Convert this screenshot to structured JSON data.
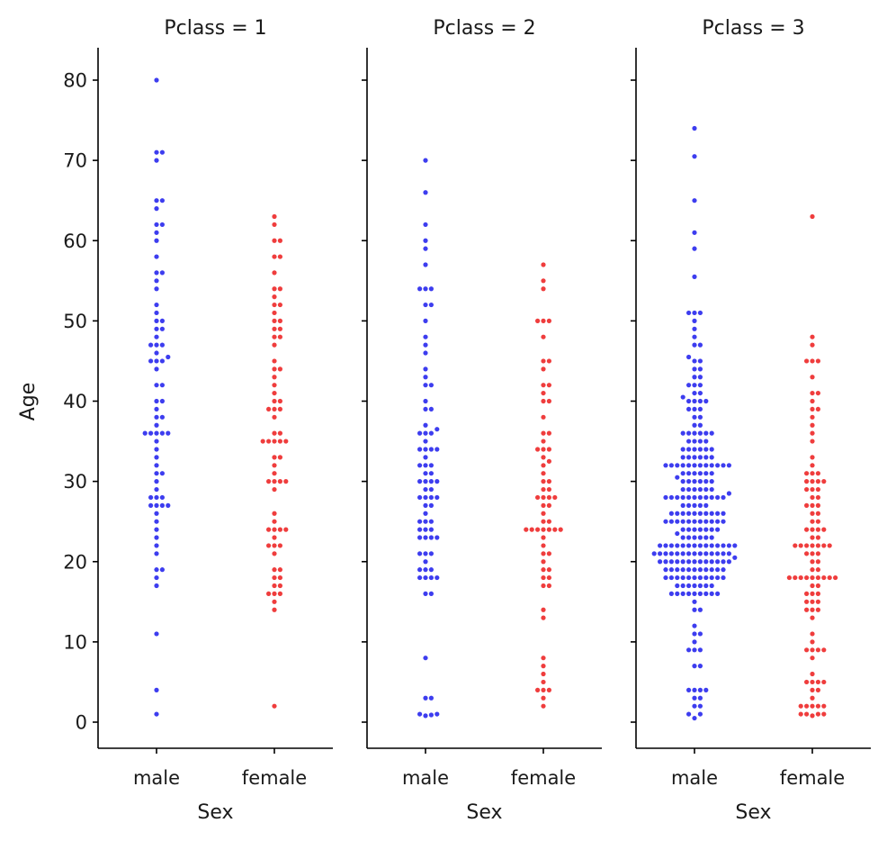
{
  "chart_data": {
    "type": "scatter",
    "kind": "swarm",
    "ylabel": "Age",
    "yticks": [
      0,
      10,
      20,
      30,
      40,
      50,
      60,
      70,
      80
    ],
    "ylim": [
      -3.4,
      84
    ],
    "categories": [
      "male",
      "female"
    ],
    "colors": {
      "male": "#3333ee",
      "female": "#ee3333"
    },
    "panels": [
      {
        "title": "Pclass = 1",
        "xlabel": "Sex",
        "series": [
          {
            "name": "male",
            "values": [
              1,
              4,
              11,
              17,
              18,
              19,
              19,
              21,
              22,
              23,
              24,
              25,
              26,
              27,
              27,
              27,
              27,
              28,
              28,
              28,
              29,
              30,
              31,
              31,
              32,
              33,
              34,
              35,
              36,
              36,
              36,
              36,
              36,
              37,
              38,
              38,
              39,
              40,
              40,
              42,
              42,
              44,
              45,
              45,
              45,
              45.5,
              46,
              47,
              47,
              47,
              48,
              49,
              49,
              50,
              50,
              51,
              52,
              54,
              55,
              56,
              56,
              58,
              60,
              61,
              62,
              62,
              64,
              65,
              65,
              70,
              71,
              71,
              80
            ]
          },
          {
            "name": "female",
            "values": [
              2,
              14,
              15,
              16,
              16,
              16,
              17,
              17,
              18,
              18,
              19,
              19,
              21,
              22,
              22,
              22,
              23,
              24,
              24,
              24,
              24,
              25,
              26,
              29,
              30,
              30,
              30,
              30,
              31,
              32,
              33,
              33,
              35,
              35,
              35,
              35,
              35,
              36,
              36,
              38,
              39,
              39,
              39,
              40,
              40,
              41,
              42,
              43,
              44,
              44,
              45,
              47,
              48,
              48,
              49,
              49,
              50,
              50,
              51,
              52,
              52,
              53,
              54,
              54,
              56,
              58,
              58,
              60,
              60,
              62,
              63
            ]
          }
        ]
      },
      {
        "title": "Pclass = 2",
        "xlabel": "Sex",
        "series": [
          {
            "name": "male",
            "values": [
              0.8,
              0.9,
              1,
              1,
              3,
              3,
              8,
              16,
              16,
              18,
              18,
              18,
              18,
              19,
              19,
              19,
              20,
              21,
              21,
              21,
              23,
              23,
              23,
              23,
              24,
              24,
              24,
              25,
              25,
              25,
              26,
              27,
              27,
              28,
              28,
              28,
              28,
              29,
              29,
              30,
              30,
              30,
              30,
              31,
              31,
              32,
              32,
              32,
              33,
              34,
              34,
              34,
              34,
              35,
              36,
              36,
              36,
              36.5,
              37,
              39,
              39,
              40,
              42,
              42,
              43,
              44,
              46,
              47,
              48,
              50,
              52,
              52,
              54,
              54,
              54,
              57,
              59,
              60,
              62,
              66,
              70
            ]
          },
          {
            "name": "female",
            "values": [
              2,
              3,
              4,
              4,
              4,
              5,
              6,
              7,
              8,
              13,
              14,
              17,
              17,
              18,
              18,
              19,
              19,
              20,
              21,
              21,
              22,
              23,
              24,
              24,
              24,
              24,
              24,
              24,
              24,
              25,
              25,
              26,
              27,
              27,
              28,
              28,
              28,
              28,
              29,
              29,
              30,
              30,
              31,
              32,
              32.5,
              33,
              34,
              34,
              34,
              35,
              36,
              36,
              38,
              40,
              40,
              41,
              42,
              42,
              44,
              45,
              45,
              48,
              50,
              50,
              50,
              54,
              55,
              57
            ]
          }
        ]
      },
      {
        "title": "Pclass = 3",
        "xlabel": "Sex",
        "series": [
          {
            "name": "male",
            "values": [
              0.5,
              1,
              1,
              2,
              2,
              3,
              3,
              4,
              4,
              4,
              4,
              7,
              7,
              9,
              9,
              9,
              10,
              11,
              11,
              12,
              14,
              14,
              15,
              16,
              16,
              16,
              16,
              16,
              16,
              16,
              16,
              16,
              17,
              17,
              17,
              17,
              17,
              17,
              17,
              18,
              18,
              18,
              18,
              18,
              18,
              18,
              18,
              18,
              18,
              18,
              19,
              19,
              19,
              19,
              19,
              19,
              19,
              19,
              19,
              19,
              19,
              20,
              20,
              20,
              20,
              20,
              20,
              20,
              20,
              20,
              20,
              20,
              20,
              20,
              20.5,
              21,
              21,
              21,
              21,
              21,
              21,
              21,
              21,
              21,
              21,
              21,
              21,
              21,
              21,
              22,
              22,
              22,
              22,
              22,
              22,
              22,
              22,
              22,
              22,
              22,
              22,
              22,
              22,
              23,
              23,
              23,
              23,
              23,
              23,
              23.5,
              24,
              24,
              24,
              24,
              24,
              24,
              24,
              25,
              25,
              25,
              25,
              25,
              25,
              25,
              25,
              25,
              25,
              25,
              26,
              26,
              26,
              26,
              26,
              26,
              26,
              26,
              26,
              26,
              27,
              27,
              27,
              27,
              27,
              28,
              28,
              28,
              28,
              28,
              28,
              28,
              28,
              28,
              28,
              28,
              28.5,
              29,
              29,
              29,
              29,
              29,
              29,
              30,
              30,
              30,
              30,
              30,
              30,
              30.5,
              31,
              31,
              31,
              31,
              31,
              31,
              32,
              32,
              32,
              32,
              32,
              32,
              32,
              32,
              32,
              32,
              32,
              32,
              33,
              33,
              33,
              33,
              33,
              33,
              34,
              34,
              34,
              34,
              34,
              34,
              35,
              35,
              35,
              35,
              36,
              36,
              36,
              36,
              36,
              36,
              37,
              37,
              38,
              38,
              39,
              39,
              39,
              40,
              40,
              40,
              40,
              40.5,
              41,
              41,
              42,
              42,
              42,
              43,
              43,
              44,
              44,
              45,
              45,
              45.5,
              47,
              47,
              48,
              49,
              50,
              51,
              51,
              51,
              55.5,
              59,
              61,
              65,
              70.5,
              74
            ]
          },
          {
            "name": "female",
            "values": [
              0.8,
              1,
              1,
              1,
              1,
              2,
              2,
              2,
              2,
              2,
              3,
              4,
              4,
              5,
              5,
              5,
              5,
              6,
              8,
              9,
              9,
              9,
              9,
              10,
              11,
              13,
              14,
              14,
              14,
              15,
              15,
              15,
              16,
              16,
              16,
              17,
              17,
              18,
              18,
              18,
              18,
              18,
              18,
              18,
              18,
              18,
              19,
              19,
              20,
              20,
              21,
              21,
              21,
              22,
              22,
              22,
              22,
              22,
              22,
              22,
              23,
              23,
              24,
              24,
              24,
              24,
              25,
              25,
              26,
              26,
              27,
              27,
              27,
              28,
              28,
              29,
              29,
              29,
              30,
              30,
              30,
              30,
              31,
              31,
              31,
              32,
              33,
              35,
              36,
              37,
              38,
              39,
              39,
              40,
              41,
              41,
              43,
              45,
              45,
              45,
              47,
              48,
              63
            ]
          }
        ]
      }
    ]
  }
}
